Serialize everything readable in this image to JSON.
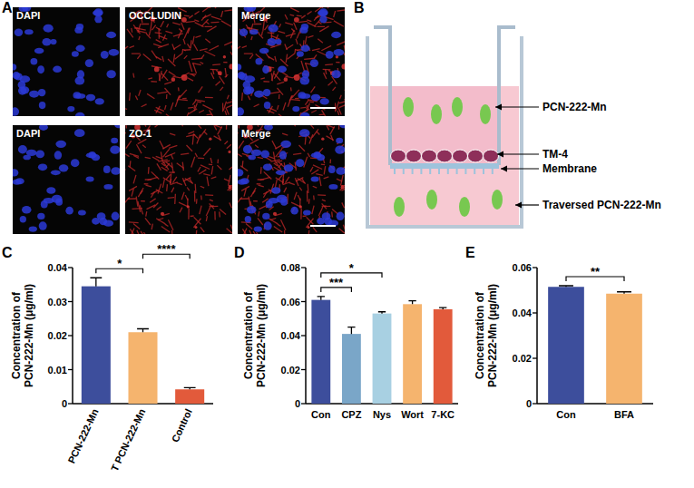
{
  "images": {
    "panel": "A",
    "rows": [
      [
        "DAPI",
        "OCCLUDIN",
        "Merge"
      ],
      [
        "DAPI",
        "ZO-1",
        "Merge"
      ]
    ]
  },
  "diagram": {
    "panel": "B",
    "labels": [
      "PCN-222-Mn",
      "TM-4",
      "Membrane",
      "Traversed PCN-222-Mn"
    ]
  },
  "chart_data": [
    {
      "panel": "C",
      "type": "bar",
      "y_label": "Concentration of PCN-222-Mn (μg/ml)",
      "categories": [
        "PCN-222-Mn",
        "T PCN-222-Mn",
        "Control"
      ],
      "values": [
        0.0345,
        0.021,
        0.0042
      ],
      "errors": [
        0.0025,
        0.001,
        0.0005
      ],
      "colors": [
        "#3d4e9c",
        "#f5b46e",
        "#e25a3b"
      ],
      "ylim": [
        0,
        0.04
      ],
      "yticks": [
        0,
        0.01,
        0.02,
        0.03,
        0.04
      ],
      "annotations": [
        {
          "between": [
            "PCN-222-Mn",
            "T PCN-222-Mn"
          ],
          "label": "*"
        },
        {
          "between": [
            "T PCN-222-Mn",
            "Control"
          ],
          "label": "****"
        }
      ]
    },
    {
      "panel": "D",
      "type": "bar",
      "y_label": "Concentration of PCN-222-Mn (μg/ml)",
      "categories": [
        "Con",
        "CPZ",
        "Nys",
        "Wort",
        "7-KC"
      ],
      "values": [
        0.061,
        0.041,
        0.053,
        0.0585,
        0.0555
      ],
      "errors": [
        0.002,
        0.004,
        0.001,
        0.002,
        0.001
      ],
      "colors": [
        "#3d4e9c",
        "#7aa6c8",
        "#a8d0e2",
        "#f5b46e",
        "#e25a3b"
      ],
      "ylim": [
        0,
        0.08
      ],
      "yticks": [
        0,
        0.02,
        0.04,
        0.06,
        0.08
      ],
      "annotations": [
        {
          "between": [
            "Con",
            "CPZ"
          ],
          "label": "***"
        },
        {
          "between": [
            "Con",
            "Nys"
          ],
          "label": "*"
        }
      ]
    },
    {
      "panel": "E",
      "type": "bar",
      "y_label": "Concentration of PCN-222-Mn (μg/ml)",
      "categories": [
        "Con",
        "BFA"
      ],
      "values": [
        0.0515,
        0.0485
      ],
      "errors": [
        0.0005,
        0.0008
      ],
      "colors": [
        "#3d4e9c",
        "#f5b46e"
      ],
      "ylim": [
        0,
        0.06
      ],
      "yticks": [
        0,
        0.02,
        0.04,
        0.06
      ],
      "annotations": [
        {
          "between": [
            "Con",
            "BFA"
          ],
          "label": "**"
        }
      ]
    }
  ]
}
